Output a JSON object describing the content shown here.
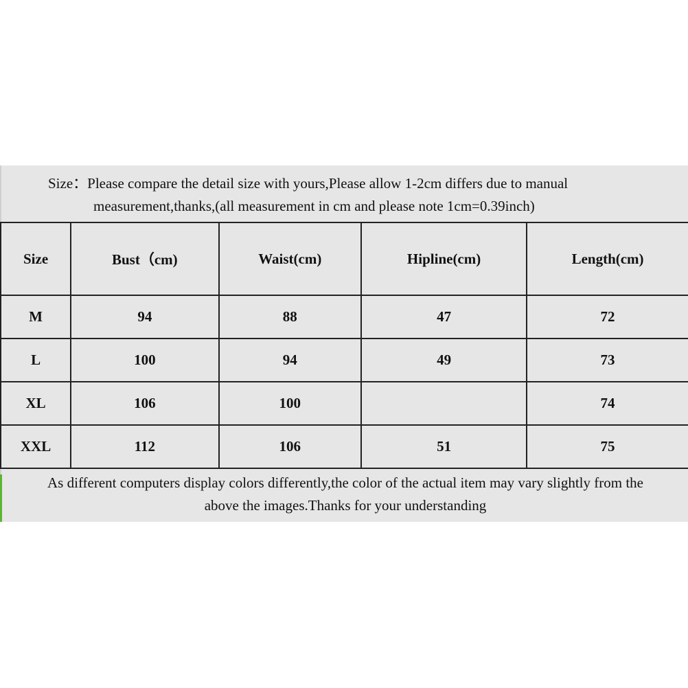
{
  "note": {
    "line1": "Size：Please compare the detail size with yours,Please allow 1-2cm differs due to manual",
    "line2": "measurement,thanks,(all measurement in cm and please note 1cm=0.39inch)"
  },
  "table": {
    "headers": [
      "Size",
      "Bust（cm)",
      "Waist(cm)",
      "Hipline(cm)",
      "Length(cm)"
    ],
    "rows": [
      [
        "M",
        "94",
        "88",
        "47",
        "72"
      ],
      [
        "L",
        "100",
        "94",
        "49",
        "73"
      ],
      [
        "XL",
        "106",
        "100",
        "",
        "74"
      ],
      [
        "XXL",
        "112",
        "106",
        "51",
        "75"
      ]
    ]
  },
  "footer": {
    "line1": "As different computers display colors differently,the color of the actual item may vary slightly from the",
    "line2": "above the images.Thanks for your understanding"
  }
}
